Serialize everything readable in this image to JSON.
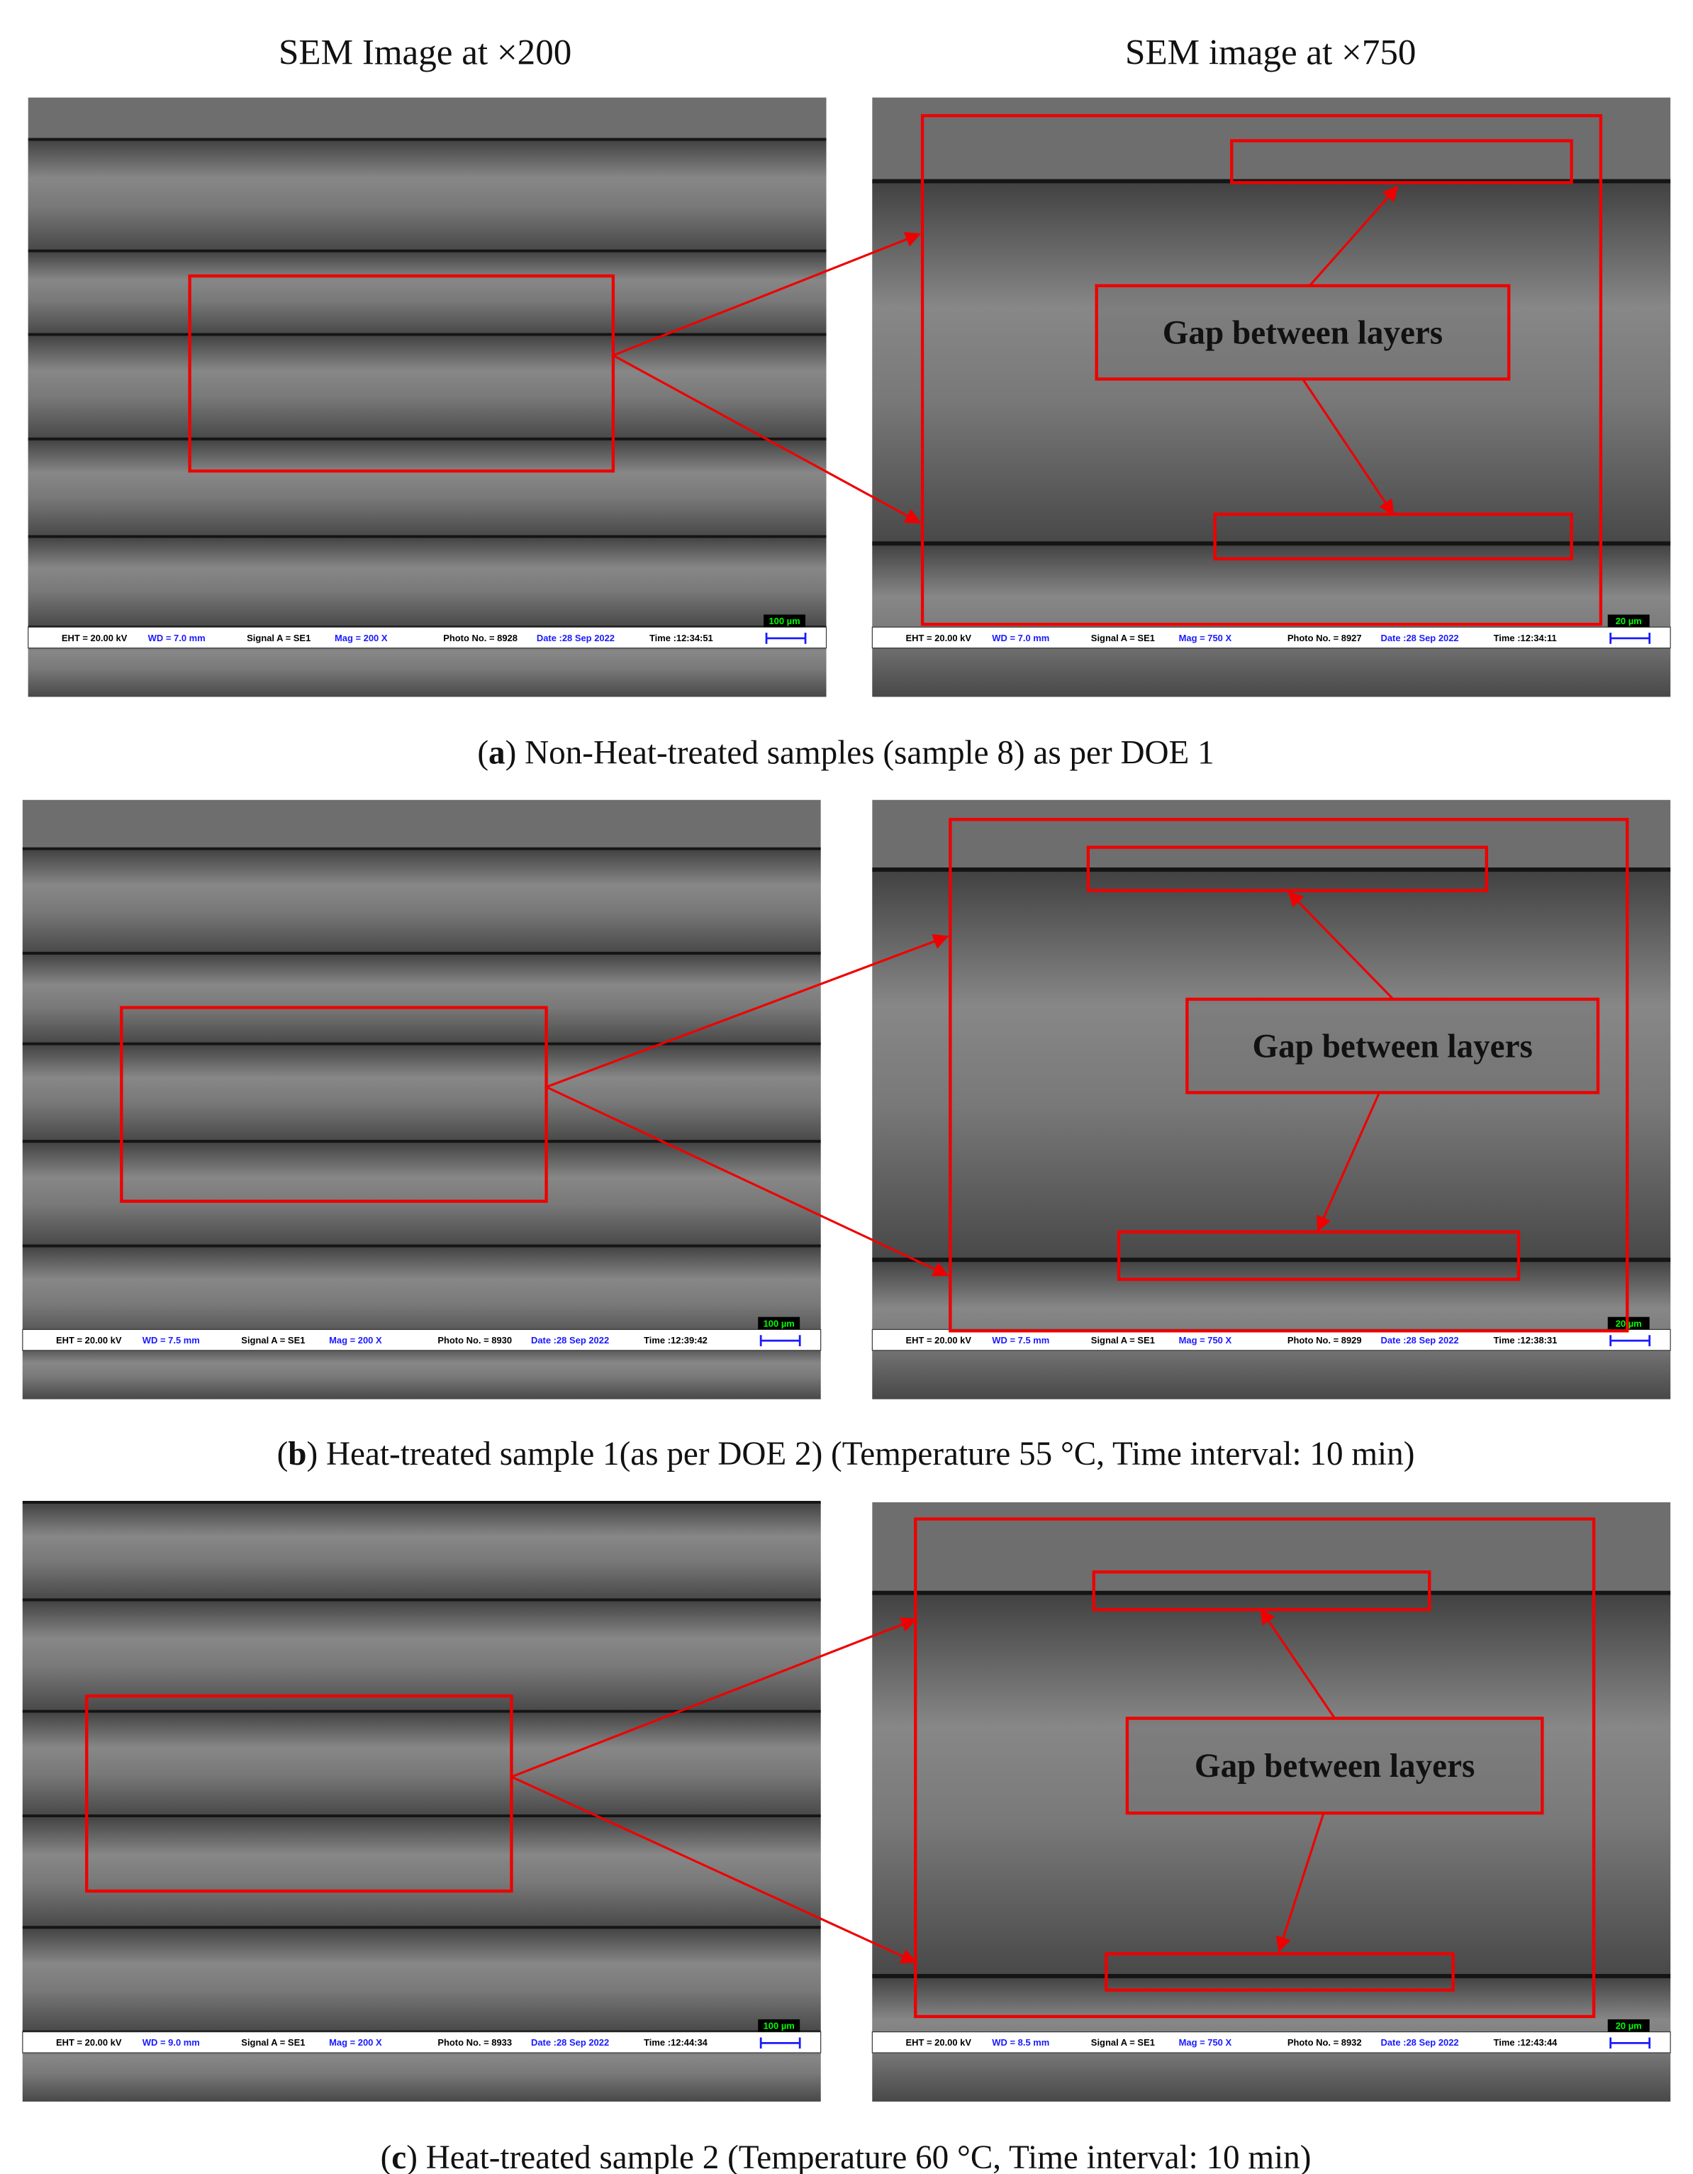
{
  "headers": [
    "SEM Image at ×200",
    "SEM image at ×750"
  ],
  "panels": [
    {
      "prefix": "(",
      "letter": "a",
      "caption": ") Non-Heat-treated samples (sample 8) as per DOE 1",
      "annotation": "Gap between layers",
      "images": [
        {
          "eht": "EHT = 20.00 kV",
          "wd": "WD = 7.0 mm",
          "signal": "Signal A = SE1",
          "mag": "Mag = 200 X",
          "photo": "Photo No. = 8928",
          "date": "Date :28 Sep 2022",
          "time": "Time :12:34:51",
          "scale": "100 µm"
        },
        {
          "eht": "EHT = 20.00 kV",
          "wd": "WD = 7.0 mm",
          "signal": "Signal A = SE1",
          "mag": "Mag = 750 X",
          "photo": "Photo No. = 8927",
          "date": "Date :28 Sep 2022",
          "time": "Time :12:34:11",
          "scale": "20 µm"
        }
      ]
    },
    {
      "prefix": "(",
      "letter": "b",
      "caption": ") Heat-treated sample 1(as per DOE 2) (Temperature 55 °C, Time interval: 10 min)",
      "annotation": "Gap between layers",
      "images": [
        {
          "eht": "EHT = 20.00 kV",
          "wd": "WD = 7.5 mm",
          "signal": "Signal A = SE1",
          "mag": "Mag = 200 X",
          "photo": "Photo No. = 8930",
          "date": "Date :28 Sep 2022",
          "time": "Time :12:39:42",
          "scale": "100 µm"
        },
        {
          "eht": "EHT = 20.00 kV",
          "wd": "WD = 7.5 mm",
          "signal": "Signal A = SE1",
          "mag": "Mag = 750 X",
          "photo": "Photo No. = 8929",
          "date": "Date :28 Sep 2022",
          "time": "Time :12:38:31",
          "scale": "20 µm"
        }
      ]
    },
    {
      "prefix": "(",
      "letter": "c",
      "caption": ") Heat-treated sample 2 (Temperature 60 °C, Time interval: 10 min)",
      "annotation": "Gap between layers",
      "images": [
        {
          "eht": "EHT = 20.00 kV",
          "wd": "WD = 9.0 mm",
          "signal": "Signal A = SE1",
          "mag": "Mag = 200 X",
          "photo": "Photo No. = 8933",
          "date": "Date :28 Sep 2022",
          "time": "Time :12:44:34",
          "scale": "100 µm"
        },
        {
          "eht": "EHT = 20.00 kV",
          "wd": "WD = 8.5 mm",
          "signal": "Signal A = SE1",
          "mag": "Mag = 750 X",
          "photo": "Photo No. = 8932",
          "date": "Date :28 Sep 2022",
          "time": "Time :12:43:44",
          "scale": "20 µm"
        }
      ]
    }
  ]
}
